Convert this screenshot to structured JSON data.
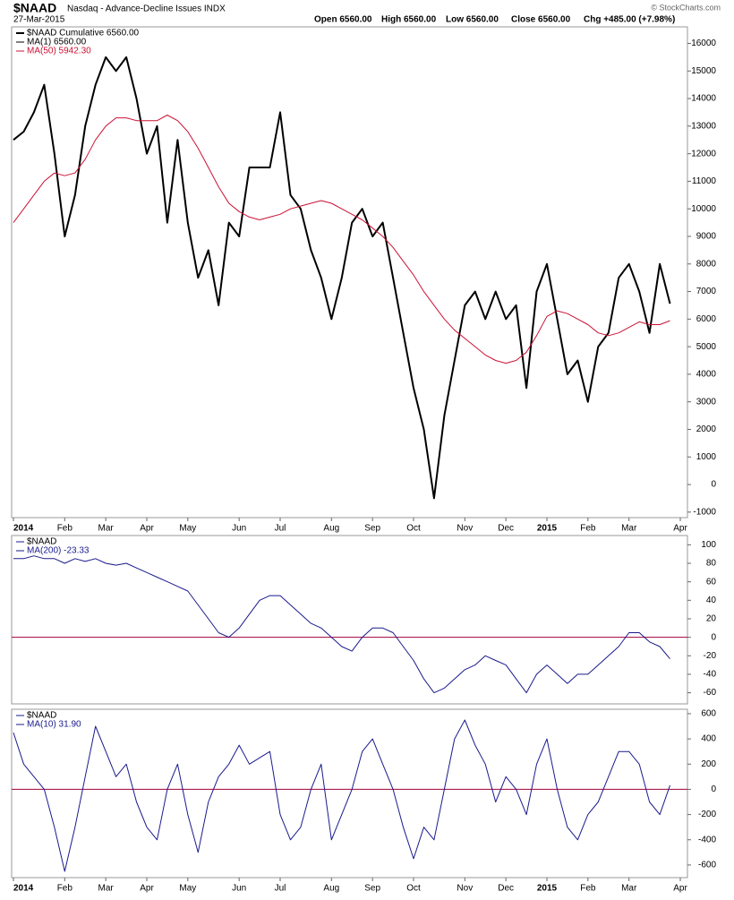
{
  "header": {
    "symbol": "$NAAD",
    "name": "Nasdaq - Advance-Decline Issues INDX",
    "date": "27-Mar-2015",
    "open": "Open 6560.00",
    "high": "High 6560.00",
    "low": "Low 6560.00",
    "close": "Close 6560.00",
    "change": "Chg +485.00 (+7.98%)",
    "source": "© StockCharts.com"
  },
  "chart_data": [
    {
      "type": "line",
      "label": "$NAAD Cumulative 6560.00",
      "categories": [
        "2014",
        null,
        null,
        null,
        null,
        "Feb",
        null,
        null,
        null,
        "Mar",
        null,
        null,
        null,
        "Apr",
        null,
        null,
        null,
        "May",
        null,
        null,
        null,
        null,
        "Jun",
        null,
        null,
        null,
        "Jul",
        null,
        null,
        null,
        null,
        "Aug",
        null,
        null,
        null,
        "Sep",
        null,
        null,
        null,
        "Oct",
        null,
        null,
        null,
        null,
        "Nov",
        null,
        null,
        null,
        "Dec",
        null,
        null,
        null,
        "2015",
        null,
        null,
        null,
        "Feb",
        null,
        null,
        null,
        "Mar",
        null,
        null,
        null,
        null,
        "Apr"
      ],
      "series": [
        {
          "name": "MA(1) 6560.00",
          "color": "#000000",
          "values": [
            12500,
            12800,
            13500,
            14500,
            12000,
            9000,
            10500,
            13000,
            14500,
            15500,
            15000,
            15500,
            14000,
            12000,
            13000,
            9500,
            12500,
            9500,
            7500,
            8500,
            6500,
            9500,
            9000,
            11500,
            11500,
            11500,
            13500,
            10500,
            10000,
            8500,
            7500,
            6000,
            7500,
            9500,
            10000,
            9000,
            9500,
            7500,
            5500,
            3500,
            2000,
            -500,
            2500,
            4500,
            6500,
            7000,
            6000,
            7000,
            6000,
            6500,
            3500,
            7000,
            8000,
            6000,
            4000,
            4500,
            3000,
            5000,
            5500,
            7500,
            8000,
            7000,
            5500,
            8000,
            6560,
            null
          ]
        },
        {
          "name": "MA(50) 5942.30",
          "color": "#cc1133",
          "values": [
            9500,
            10000,
            10500,
            11000,
            11300,
            11200,
            11300,
            11800,
            12500,
            13000,
            13300,
            13300,
            13200,
            13200,
            13200,
            13400,
            13200,
            12800,
            12200,
            11500,
            10800,
            10200,
            9900,
            9700,
            9600,
            9700,
            9800,
            10000,
            10100,
            10200,
            10300,
            10200,
            10000,
            9800,
            9600,
            9300,
            9000,
            8600,
            8100,
            7600,
            7000,
            6500,
            6000,
            5600,
            5300,
            5000,
            4700,
            4500,
            4400,
            4500,
            4800,
            5400,
            6100,
            6300,
            6200,
            6000,
            5800,
            5500,
            5400,
            5500,
            5700,
            5900,
            5800,
            5800,
            5942.3,
            null
          ]
        }
      ],
      "ylim": [
        -1200,
        16600
      ],
      "yticks": [
        -1000,
        0,
        1000,
        2000,
        3000,
        4000,
        5000,
        6000,
        7000,
        8000,
        9000,
        10000,
        11000,
        12000,
        13000,
        14000,
        15000,
        16000
      ]
    },
    {
      "type": "line",
      "label": "$NAAD",
      "series": [
        {
          "name": "MA(200) -23.33",
          "color": "#1a1a8c",
          "values": [
            85,
            85,
            88,
            85,
            85,
            80,
            85,
            82,
            85,
            80,
            78,
            80,
            75,
            70,
            65,
            60,
            55,
            50,
            35,
            20,
            5,
            0,
            10,
            25,
            40,
            45,
            45,
            35,
            25,
            15,
            10,
            0,
            -10,
            -15,
            0,
            10,
            10,
            5,
            -10,
            -25,
            -45,
            -60,
            -55,
            -45,
            -35,
            -30,
            -20,
            -25,
            -30,
            -45,
            -60,
            -40,
            -30,
            -40,
            -50,
            -40,
            -40,
            -30,
            -20,
            -10,
            5,
            5,
            -5,
            -10,
            -23.33,
            null
          ]
        }
      ],
      "ylim": [
        -72,
        110
      ],
      "yticks": [
        -60,
        -40,
        -20,
        0,
        20,
        40,
        60,
        80,
        100
      ],
      "hline": 0,
      "hline_color": "#a0003c"
    },
    {
      "type": "line",
      "label": "$NAAD",
      "categories": [
        "2014",
        null,
        null,
        null,
        null,
        "Feb",
        null,
        null,
        null,
        "Mar",
        null,
        null,
        null,
        "Apr",
        null,
        null,
        null,
        "May",
        null,
        null,
        null,
        null,
        "Jun",
        null,
        null,
        null,
        "Jul",
        null,
        null,
        null,
        null,
        "Aug",
        null,
        null,
        null,
        "Sep",
        null,
        null,
        null,
        "Oct",
        null,
        null,
        null,
        null,
        "Nov",
        null,
        null,
        null,
        "Dec",
        null,
        null,
        null,
        "2015",
        null,
        null,
        null,
        "Feb",
        null,
        null,
        null,
        "Mar",
        null,
        null,
        null,
        null,
        "Apr"
      ],
      "series": [
        {
          "name": "MA(10) 31.90",
          "color": "#1a1a8c",
          "values": [
            450,
            200,
            100,
            0,
            -300,
            -650,
            -300,
            100,
            500,
            300,
            100,
            200,
            -100,
            -300,
            -400,
            0,
            200,
            -200,
            -500,
            -100,
            100,
            200,
            350,
            200,
            250,
            300,
            -200,
            -400,
            -300,
            0,
            200,
            -400,
            -200,
            0,
            300,
            400,
            200,
            0,
            -300,
            -550,
            -300,
            -400,
            0,
            400,
            550,
            350,
            200,
            -100,
            100,
            0,
            -200,
            200,
            400,
            0,
            -300,
            -400,
            -200,
            -100,
            100,
            300,
            300,
            200,
            -100,
            -200,
            31.9,
            null
          ]
        }
      ],
      "ylim": [
        -700,
        635
      ],
      "yticks": [
        -600,
        -400,
        -200,
        0,
        200,
        400,
        600
      ],
      "hline": 0,
      "hline_color": "#a0003c"
    }
  ]
}
